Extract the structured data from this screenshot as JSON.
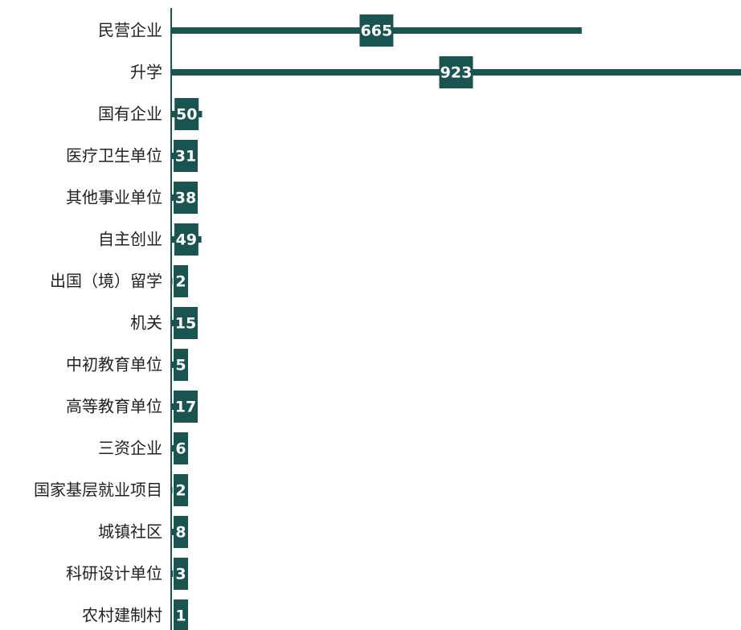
{
  "chart_data": {
    "type": "bar",
    "orientation": "horizontal",
    "color": "#1a5451",
    "categories": [
      "民营企业",
      "升学",
      "国有企业",
      "医疗卫生单位",
      "其他事业单位",
      "自主创业",
      "出国（境）留学",
      "机关",
      "中初教育单位",
      "高等教育单位",
      "三资企业",
      "国家基层就业项目",
      "城镇社区",
      "科研设计单位",
      "农村建制村"
    ],
    "values": [
      665,
      923,
      50,
      31,
      38,
      49,
      2,
      15,
      5,
      17,
      6,
      2,
      8,
      3,
      1
    ]
  }
}
